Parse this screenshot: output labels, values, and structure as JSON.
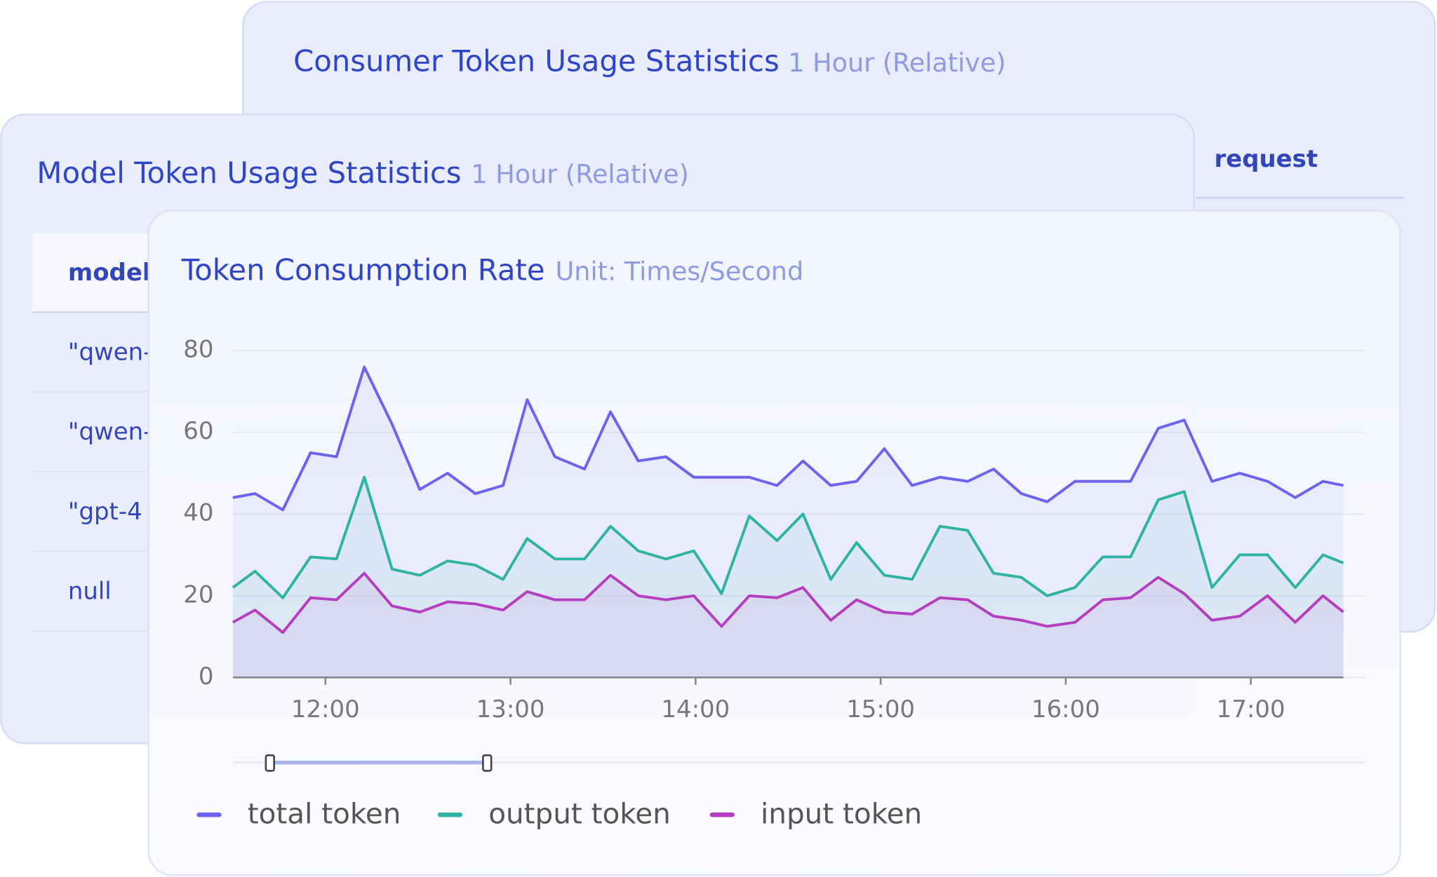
{
  "panels": {
    "consumer": {
      "title": "Consumer Token Usage Statistics",
      "subtitle": "1 Hour (Relative)",
      "column": "request"
    },
    "model": {
      "title": "Model Token Usage Statistics",
      "subtitle": "1 Hour (Relative)",
      "column": "model",
      "rows": [
        "\"qwen-",
        "\"qwen-",
        "\"gpt-4",
        "null"
      ]
    }
  },
  "chart_data": {
    "type": "line",
    "title": "Token Consumption Rate",
    "subtitle": "Unit: Times/Second",
    "x": [
      11.5,
      11.62,
      11.77,
      11.92,
      12.06,
      12.21,
      12.36,
      12.51,
      12.66,
      12.81,
      12.96,
      13.09,
      13.24,
      13.4,
      13.54,
      13.69,
      13.84,
      13.99,
      14.14,
      14.29,
      14.44,
      14.58,
      14.73,
      14.87,
      15.02,
      15.17,
      15.32,
      15.47,
      15.61,
      15.76,
      15.9,
      16.05,
      16.2,
      16.35,
      16.5,
      16.64,
      16.79,
      16.94,
      17.09,
      17.24,
      17.39,
      17.5
    ],
    "series": [
      {
        "name": "total token",
        "color": "#6c63f0",
        "values": [
          44,
          45,
          41,
          55,
          54,
          76,
          62,
          46,
          50,
          45,
          47,
          68,
          54,
          51,
          65,
          53,
          54,
          49,
          49,
          49,
          47,
          53,
          47,
          48,
          56,
          47,
          49,
          48,
          51,
          45,
          43,
          48,
          48,
          48,
          61,
          63,
          48,
          50,
          48,
          44,
          48,
          47
        ]
      },
      {
        "name": "output token",
        "color": "#2fb3a2",
        "values": [
          22,
          26,
          19.5,
          29.5,
          29,
          49,
          26.5,
          25,
          28.5,
          27.5,
          24,
          34,
          29,
          29,
          37,
          31,
          29,
          31,
          20.5,
          39.5,
          33.5,
          40,
          24,
          33,
          25,
          24,
          37,
          36,
          25.5,
          24.5,
          20,
          22,
          29.5,
          29.5,
          43.5,
          45.5,
          22,
          30,
          30,
          22,
          30,
          28
        ]
      },
      {
        "name": "input token",
        "color": "#b53dbf",
        "values": [
          13.5,
          16.5,
          11,
          19.5,
          19,
          25.5,
          17.5,
          16,
          18.5,
          18,
          16.5,
          21,
          19,
          19,
          25,
          20,
          19,
          20,
          12.5,
          20,
          19.5,
          22,
          14,
          19,
          16,
          15.5,
          19.5,
          19,
          15,
          14,
          12.5,
          13.5,
          19,
          19.5,
          24.5,
          20.5,
          14,
          15,
          20,
          13.5,
          20,
          16
        ]
      }
    ],
    "xlim": [
      11.5,
      17.5
    ],
    "xticks": [
      {
        "value": 12,
        "label": "12:00"
      },
      {
        "value": 13,
        "label": "13:00"
      },
      {
        "value": 14,
        "label": "14:00"
      },
      {
        "value": 15,
        "label": "15:00"
      },
      {
        "value": 16,
        "label": "16:00"
      },
      {
        "value": 17,
        "label": "17:00"
      }
    ],
    "ylim": [
      0,
      80
    ],
    "yticks": [
      0,
      20,
      40,
      60,
      80
    ],
    "grid": true
  }
}
